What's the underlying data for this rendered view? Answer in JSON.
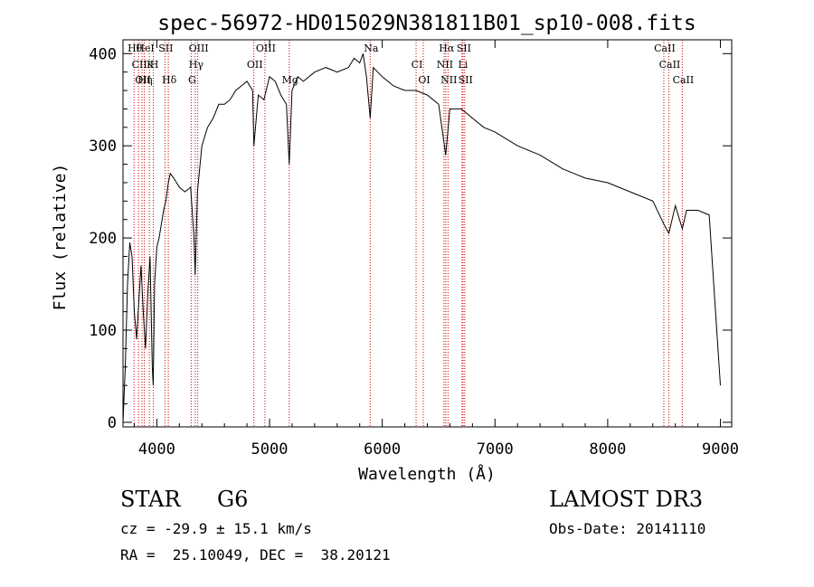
{
  "chart_data": {
    "type": "line",
    "title": "spec-56972-HD015029N381811B01_sp10-008.fits",
    "xlabel": "Wavelength (Å)",
    "ylabel": "Flux (relative)",
    "xlim": [
      3700,
      9100
    ],
    "ylim": [
      -5,
      415
    ],
    "x_ticks": [
      4000,
      5000,
      6000,
      7000,
      8000,
      9000
    ],
    "y_ticks": [
      0,
      100,
      200,
      300,
      400
    ],
    "grid": false,
    "series": [
      {
        "name": "Flux",
        "x": [
          3700,
          3720,
          3740,
          3760,
          3780,
          3800,
          3820,
          3840,
          3860,
          3880,
          3900,
          3920,
          3940,
          3960,
          3968,
          3980,
          4000,
          4020,
          4040,
          4060,
          4080,
          4102,
          4120,
          4150,
          4200,
          4250,
          4300,
          4330,
          4340,
          4360,
          4400,
          4450,
          4500,
          4550,
          4600,
          4650,
          4700,
          4750,
          4800,
          4850,
          4861,
          4900,
          4950,
          5000,
          5050,
          5100,
          5150,
          5175,
          5200,
          5250,
          5300,
          5400,
          5500,
          5600,
          5700,
          5750,
          5800,
          5830,
          5860,
          5893,
          5920,
          6000,
          6100,
          6200,
          6300,
          6400,
          6500,
          6563,
          6600,
          6700,
          6800,
          6900,
          7000,
          7200,
          7400,
          7600,
          7800,
          8000,
          8200,
          8400,
          8498,
          8542,
          8600,
          8662,
          8700,
          8800,
          8900,
          9000
        ],
        "y": [
          0,
          60,
          150,
          195,
          180,
          120,
          90,
          130,
          170,
          120,
          80,
          140,
          180,
          60,
          40,
          150,
          190,
          200,
          215,
          230,
          240,
          260,
          270,
          265,
          255,
          250,
          255,
          200,
          160,
          250,
          300,
          320,
          330,
          345,
          345,
          350,
          360,
          365,
          370,
          360,
          300,
          355,
          350,
          375,
          370,
          355,
          345,
          280,
          360,
          375,
          370,
          380,
          385,
          380,
          385,
          395,
          390,
          400,
          375,
          330,
          385,
          375,
          365,
          360,
          360,
          355,
          345,
          290,
          340,
          340,
          330,
          320,
          315,
          300,
          290,
          275,
          265,
          260,
          250,
          240,
          215,
          205,
          235,
          210,
          230,
          230,
          225,
          40
        ]
      }
    ],
    "lines": [
      {
        "label": "Hθ",
        "x": 3798
      },
      {
        "label": "CII",
        "x": 3838
      },
      {
        "label": "OII",
        "x": 3869
      },
      {
        "label": "HeI",
        "x": 3889
      },
      {
        "label": "K",
        "x": 3934
      },
      {
        "label": "Hη",
        "x": 3889
      },
      {
        "label": "SII",
        "x": 4072
      },
      {
        "label": "H",
        "x": 3969
      },
      {
        "label": "Hδ",
        "x": 4102
      },
      {
        "label": "OIII",
        "x": 4363
      },
      {
        "label": "Hγ",
        "x": 4341
      },
      {
        "label": "G",
        "x": 4305
      },
      {
        "label": "OIII",
        "x": 4959
      },
      {
        "label": "OII",
        "x": 4861
      },
      {
        "label": "Mg",
        "x": 5175
      },
      {
        "label": "Na",
        "x": 5893
      },
      {
        "label": "CI",
        "x": 6300
      },
      {
        "label": "OI",
        "x": 6364
      },
      {
        "label": "Hα",
        "x": 6563
      },
      {
        "label": "NII",
        "x": 6548
      },
      {
        "label": "NII",
        "x": 6583
      },
      {
        "label": "SII",
        "x": 6716
      },
      {
        "label": "Li",
        "x": 6708
      },
      {
        "label": "SII",
        "x": 6731
      },
      {
        "label": "CaII",
        "x": 8498
      },
      {
        "label": "CaII",
        "x": 8542
      },
      {
        "label": "CaII",
        "x": 8662
      }
    ]
  },
  "info": {
    "object_class": "STAR",
    "subclass": "G6",
    "survey": "LAMOST DR3",
    "cz": "cz = -29.9 ± 15.1 km/s",
    "obs_date": "Obs-Date: 20141110",
    "coords": "RA =  25.10049, DEC =  38.20121"
  }
}
